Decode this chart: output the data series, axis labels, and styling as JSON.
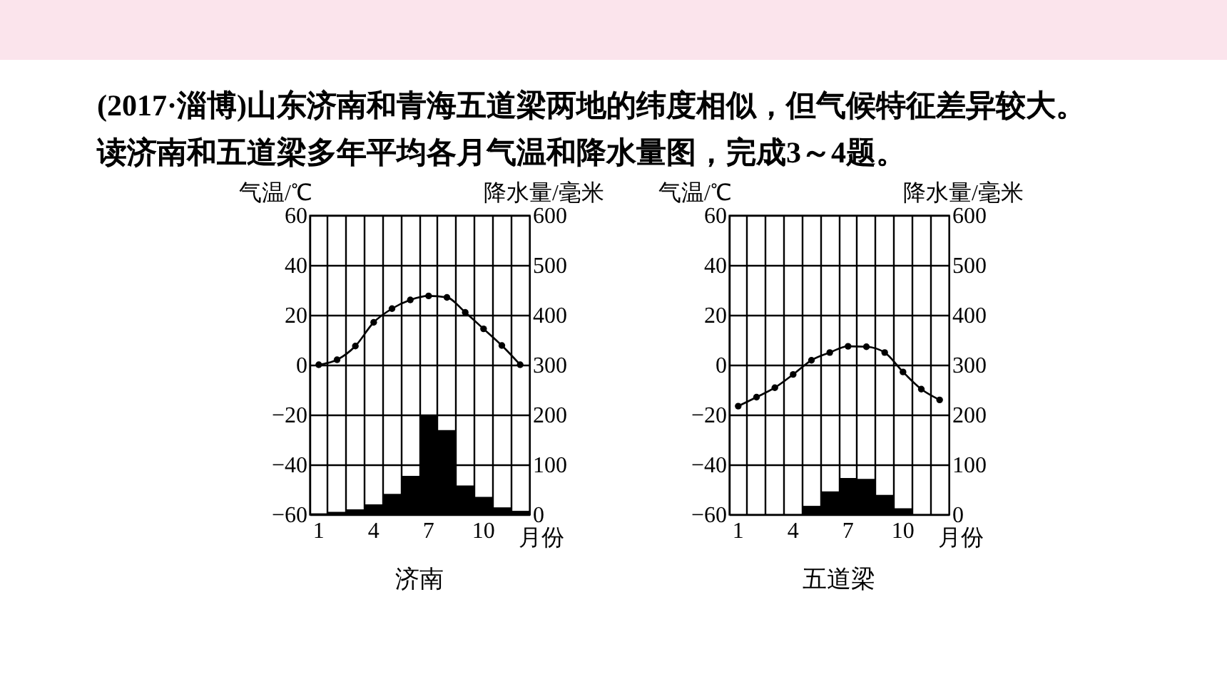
{
  "chart_data": [
    {
      "type": "bar",
      "title": "济南",
      "annotations": [
        "(2017·淄博)山东济南和青海五道梁两地的纬度相似，但气候特征差异较大。读济南和五道梁多年平均各月气温和降水量图，完成3～4题。"
      ],
      "categories": [
        "1",
        null,
        null,
        "4",
        null,
        null,
        "7",
        null,
        null,
        "10",
        null,
        null
      ],
      "xlabel": "月份",
      "ylabel": "气温/℃",
      "y2label": "降水量/毫米",
      "ylim": [
        -60,
        60
      ],
      "yticks": [
        -60,
        -40,
        -20,
        0,
        20,
        40,
        60
      ],
      "y2lim": [
        0,
        600
      ],
      "y2ticks": [
        0,
        100,
        200,
        300,
        400,
        500,
        600
      ],
      "grid": true,
      "marker": "circle",
      "series": [
        {
          "axis": "y2",
          "color": "#000000",
          "values": [
            2,
            5,
            10,
            20,
            41,
            77,
            197,
            169,
            58,
            35,
            14,
            7
          ]
        },
        {
          "type": "line",
          "color": "#000000",
          "values": [
            0,
            2,
            7.5,
            17,
            22.5,
            26,
            27.6,
            27,
            21,
            14.4,
            7.7,
            0
          ]
        }
      ]
    },
    {
      "type": "bar",
      "title": "五道梁",
      "categories": [
        "1",
        null,
        null,
        "4",
        null,
        null,
        "7",
        null,
        null,
        "10",
        null,
        null
      ],
      "xlabel": "月份",
      "ylabel": "气温/℃",
      "y2label": "降水量/毫米",
      "ylim": [
        -60,
        60
      ],
      "yticks": [
        -60,
        -40,
        -20,
        0,
        20,
        40,
        60
      ],
      "y2lim": [
        0,
        600
      ],
      "y2ticks": [
        0,
        100,
        200,
        300,
        400,
        500,
        600
      ],
      "grid": true,
      "marker": "circle",
      "series": [
        {
          "axis": "y2",
          "color": "#000000",
          "values": [
            0,
            0,
            0,
            0,
            17,
            46,
            73,
            71,
            39,
            12,
            0,
            0
          ]
        },
        {
          "type": "line",
          "color": "#000000",
          "values": [
            -16.6,
            -13,
            -9.2,
            -3.9,
            1.8,
            4.9,
            7.4,
            7.2,
            4.9,
            -2.9,
            -9.8,
            -14.1
          ]
        }
      ]
    }
  ]
}
